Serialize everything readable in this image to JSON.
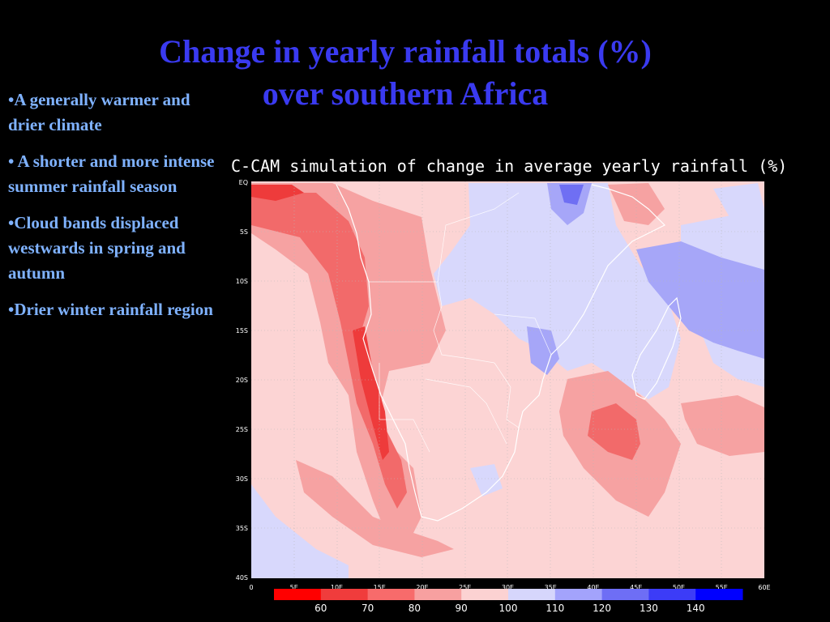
{
  "slide": {
    "title_line1": "Change in yearly rainfall totals (%)",
    "title_line2": "over southern Africa",
    "bullets": [
      "•A  generally warmer and drier climate",
      "• A shorter and more intense summer rainfall season",
      "•Cloud bands displaced westwards in spring and autumn",
      "•Drier winter rainfall region"
    ]
  },
  "map": {
    "title": "C-CAM simulation of change in average yearly rainfall (%)",
    "lat_labels": [
      "EQ",
      "5S",
      "10S",
      "15S",
      "20S",
      "25S",
      "30S",
      "35S",
      "40S"
    ],
    "lon_labels": [
      "0",
      "5E",
      "10E",
      "15E",
      "20E",
      "25E",
      "30E",
      "35E",
      "40E",
      "45E",
      "50E",
      "55E",
      "60E"
    ],
    "colorbar": {
      "labels": [
        "60",
        "70",
        "80",
        "90",
        "100",
        "110",
        "120",
        "130",
        "140"
      ],
      "colors": [
        "#ff0000",
        "#f03c3c",
        "#f76b6b",
        "#f7a0a0",
        "#fcd2d2",
        "#d6d6fc",
        "#a3a3fc",
        "#6e6ef5",
        "#3c3cf7",
        "#0000ff"
      ]
    },
    "colors": {
      "deep_red": "#ee3b3b",
      "mid_red": "#f26a6a",
      "light_red": "#f6a2a2",
      "pale_red": "#fcd4d4",
      "pale_blue": "#d8d8fc",
      "mid_blue": "#a6a6f8",
      "deep_blue": "#6f6ff3"
    }
  }
}
